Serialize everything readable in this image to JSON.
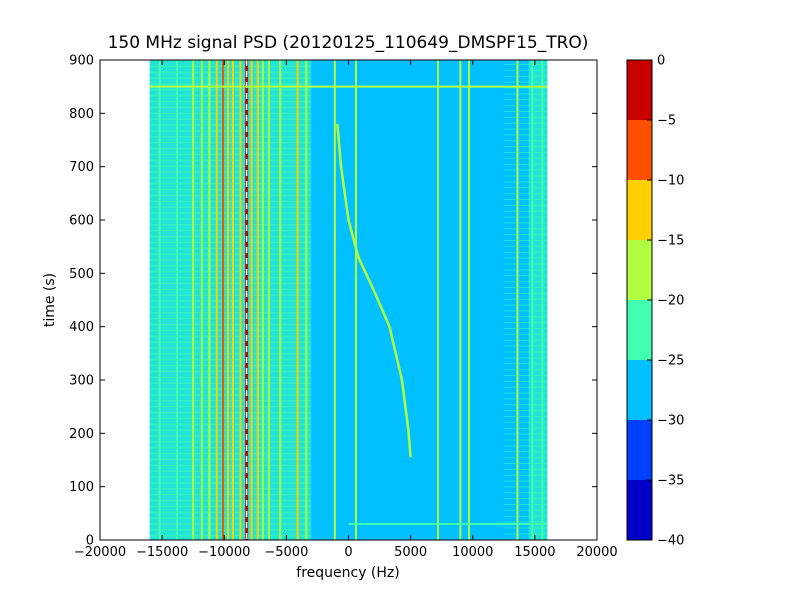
{
  "chart_data": {
    "type": "heatmap",
    "title": "150 MHz signal PSD (20120125_110649_DMSPF15_TRO)",
    "xlabel": "frequency (Hz)",
    "ylabel": "time (s)",
    "xlim": [
      -20000,
      20000
    ],
    "ylim": [
      0,
      900
    ],
    "xticks": [
      -20000,
      -15000,
      -10000,
      -5000,
      0,
      5000,
      10000,
      15000,
      20000
    ],
    "xtick_labels": [
      "−20000",
      "−15000",
      "−10000",
      "−5000",
      "0",
      "5000",
      "10000",
      "15000",
      "20000"
    ],
    "yticks": [
      0,
      100,
      200,
      300,
      400,
      500,
      600,
      700,
      800,
      900
    ],
    "ytick_labels": [
      "0",
      "100",
      "200",
      "300",
      "400",
      "500",
      "600",
      "700",
      "800",
      "900"
    ],
    "data_extent": {
      "freq_min": -16000,
      "freq_max": 16000,
      "time_min": 0,
      "time_max": 900
    },
    "background_level": -27,
    "outer_band_level": -22,
    "colorbar": {
      "min": -40,
      "max": 0,
      "ticks": [
        0,
        -5,
        -10,
        -15,
        -20,
        -25,
        -30,
        -35,
        -40
      ],
      "tick_labels": [
        "0",
        "−5",
        "−10",
        "−15",
        "−20",
        "−25",
        "−30",
        "−35",
        "−40"
      ],
      "levels": [
        {
          "from": -40,
          "to": -35,
          "color": "#0000c8"
        },
        {
          "from": -35,
          "to": -30,
          "color": "#0040ff"
        },
        {
          "from": -30,
          "to": -25,
          "color": "#00c0ff"
        },
        {
          "from": -25,
          "to": -20,
          "color": "#40ffb0"
        },
        {
          "from": -20,
          "to": -15,
          "color": "#b0ff40"
        },
        {
          "from": -15,
          "to": -10,
          "color": "#ffd000"
        },
        {
          "from": -10,
          "to": -5,
          "color": "#ff5000"
        },
        {
          "from": -5,
          "to": 0,
          "color": "#c80000"
        }
      ]
    },
    "vertical_lines": [
      {
        "freq": -15200,
        "level": -21
      },
      {
        "freq": -13800,
        "level": -21
      },
      {
        "freq": -12500,
        "level": -19
      },
      {
        "freq": -11800,
        "level": -17
      },
      {
        "freq": -11200,
        "level": -17
      },
      {
        "freq": -10600,
        "level": -14
      },
      {
        "freq": -10100,
        "level": -8
      },
      {
        "freq": -9700,
        "level": -12
      },
      {
        "freq": -9300,
        "level": -13
      },
      {
        "freq": -8700,
        "level": -11
      },
      {
        "freq": -8200,
        "level": -2
      },
      {
        "freq": -7800,
        "level": -12
      },
      {
        "freq": -7300,
        "level": -13
      },
      {
        "freq": -6900,
        "level": -16
      },
      {
        "freq": -6400,
        "level": -17
      },
      {
        "freq": -5500,
        "level": -19
      },
      {
        "freq": -4100,
        "level": -13
      },
      {
        "freq": -3400,
        "level": -18
      },
      {
        "freq": -1100,
        "level": -20
      },
      {
        "freq": 600,
        "level": -17
      },
      {
        "freq": 7200,
        "level": -19
      },
      {
        "freq": 9000,
        "level": -18
      },
      {
        "freq": 9700,
        "level": -17
      },
      {
        "freq": 13600,
        "level": -19
      },
      {
        "freq": 14800,
        "level": -21
      },
      {
        "freq": 15600,
        "level": -21
      }
    ],
    "doppler_trace": {
      "level": -18,
      "points": [
        {
          "freq": 5000,
          "time": 155
        },
        {
          "freq": 4800,
          "time": 210
        },
        {
          "freq": 4300,
          "time": 300
        },
        {
          "freq": 3300,
          "time": 400
        },
        {
          "freq": 2000,
          "time": 470
        },
        {
          "freq": 800,
          "time": 530
        },
        {
          "freq": 0,
          "time": 600
        },
        {
          "freq": -600,
          "time": 700
        },
        {
          "freq": -900,
          "time": 780
        }
      ]
    },
    "horizontal_lines": [
      {
        "time": 30,
        "freq_min": 0,
        "freq_max": 16000,
        "level": -22
      },
      {
        "time": 850,
        "freq_min": -16000,
        "freq_max": 16000,
        "level": -19
      }
    ]
  }
}
